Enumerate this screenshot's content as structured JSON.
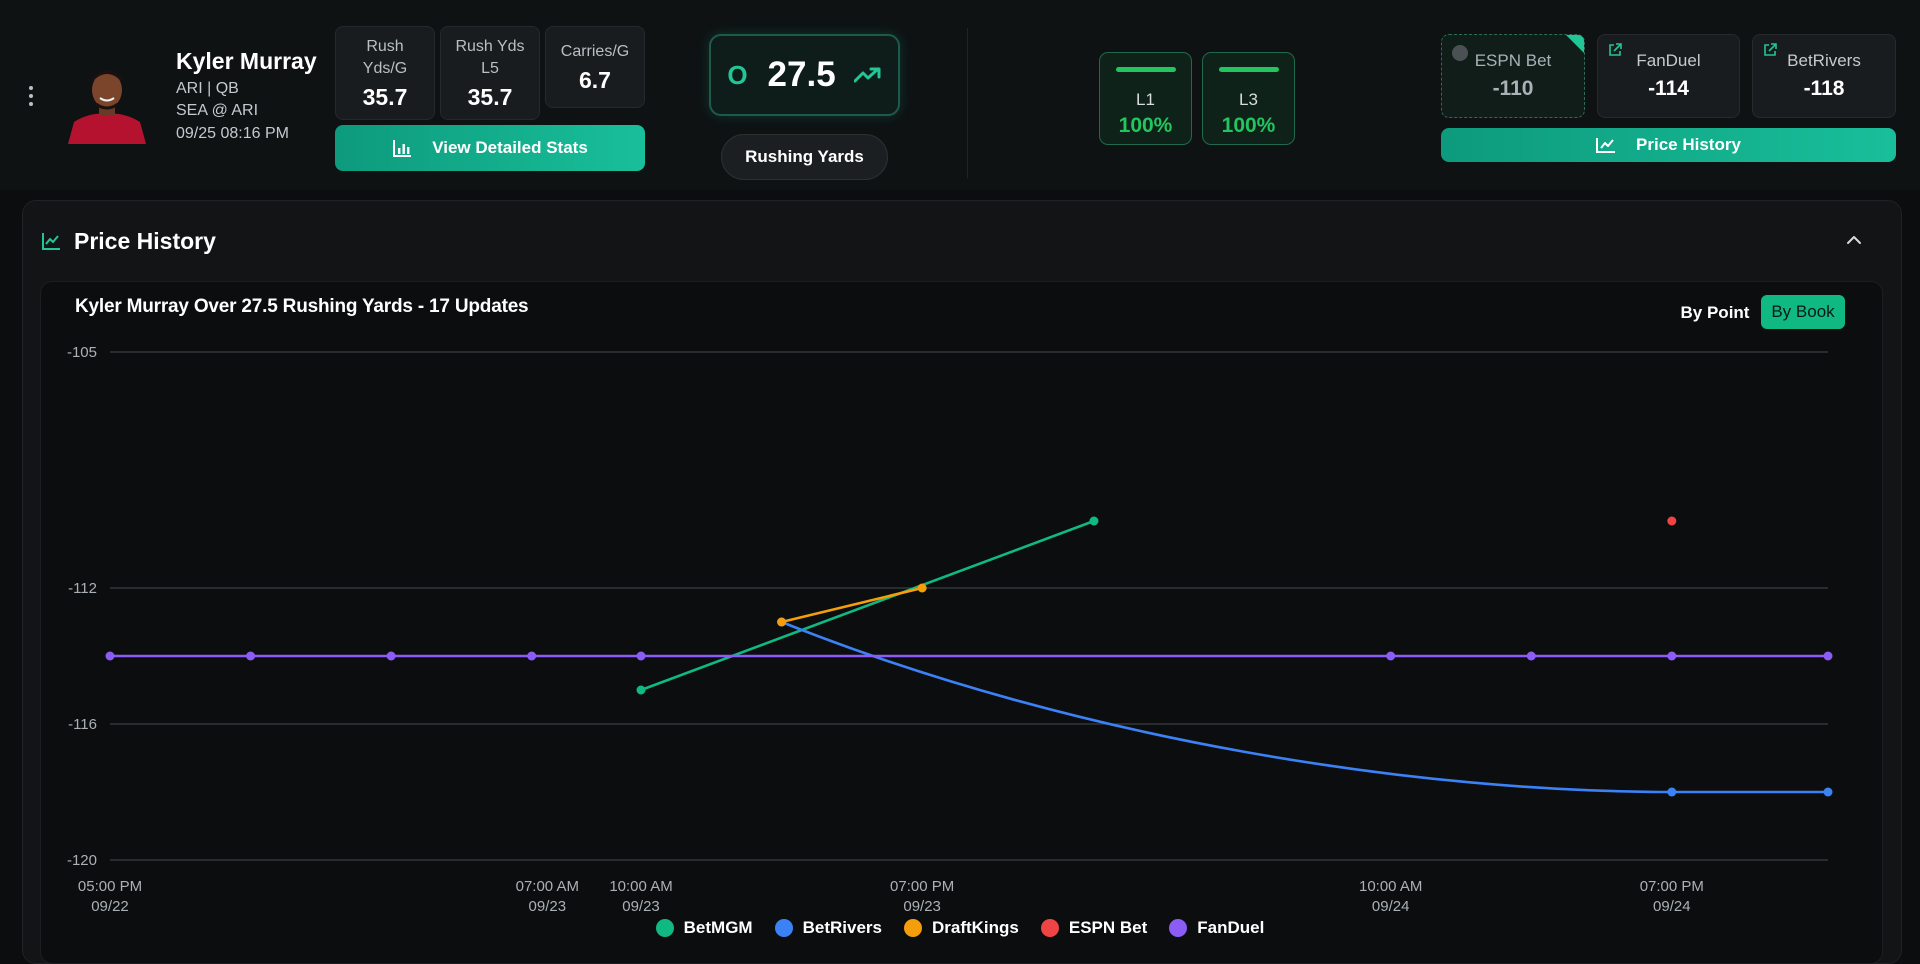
{
  "player": {
    "name": "Kyler Murray",
    "team_pos": "ARI | QB",
    "matchup": "SEA @ ARI",
    "datetime": "09/25 08:16 PM"
  },
  "stats": [
    {
      "label_line1": "Rush",
      "label_line2": "Yds/G",
      "value": "35.7"
    },
    {
      "label_line1": "Rush Yds",
      "label_line2": "L5",
      "value": "35.7"
    },
    {
      "label_line1": "Carries/G",
      "label_line2": "",
      "value": "6.7"
    }
  ],
  "view_stats_label": "View Detailed Stats",
  "line": {
    "side": "O",
    "value": "27.5",
    "market": "Rushing Yards"
  },
  "hit_rates": [
    {
      "label": "L1",
      "value": "100%"
    },
    {
      "label": "L3",
      "value": "100%"
    }
  ],
  "books": [
    {
      "name": "ESPN Bet",
      "odds": "-110"
    },
    {
      "name": "FanDuel",
      "odds": "-114"
    },
    {
      "name": "BetRivers",
      "odds": "-118"
    }
  ],
  "price_history_button": "Price History",
  "panel": {
    "title": "Price History"
  },
  "chart_toggle": {
    "by_point": "By Point",
    "by_book": "By Book"
  },
  "colors": {
    "accent": "#10b981",
    "BetMGM": "#10b981",
    "BetRivers": "#3b82f6",
    "DraftKings": "#f59e0b",
    "ESPN Bet": "#ef4444",
    "FanDuel": "#8b5cf6"
  },
  "chart_data": {
    "type": "line",
    "title": "Kyler Murray Over 27.5 Rushing Yards - 17 Updates",
    "xlabel": "",
    "ylabel": "",
    "ylim": [
      -120,
      -105
    ],
    "yticks": [
      -105,
      -112,
      -116,
      -120
    ],
    "xticks": [
      {
        "t": 0,
        "time": "05:00 PM",
        "date": "09/22"
      },
      {
        "t": 14,
        "time": "07:00 AM",
        "date": "09/23"
      },
      {
        "t": 17,
        "time": "10:00 AM",
        "date": "09/23"
      },
      {
        "t": 26,
        "time": "07:00 PM",
        "date": "09/23"
      },
      {
        "t": 41,
        "time": "10:00 AM",
        "date": "09/24"
      },
      {
        "t": 50,
        "time": "07:00 PM",
        "date": "09/24"
      }
    ],
    "xlim": [
      0,
      55
    ],
    "legend_position": "bottom",
    "grid": true,
    "series": [
      {
        "name": "BetMGM",
        "points": [
          [
            17,
            -115
          ],
          [
            31.5,
            -110
          ]
        ]
      },
      {
        "name": "BetRivers",
        "points": [
          [
            21.5,
            -113
          ],
          [
            50,
            -118
          ],
          [
            55,
            -118
          ]
        ]
      },
      {
        "name": "DraftKings",
        "points": [
          [
            21.5,
            -113
          ],
          [
            26,
            -112
          ]
        ]
      },
      {
        "name": "ESPN Bet",
        "points": [
          [
            50,
            -110
          ]
        ]
      },
      {
        "name": "FanDuel",
        "points": [
          [
            0,
            -114
          ],
          [
            4.5,
            -114
          ],
          [
            9,
            -114
          ],
          [
            13.5,
            -114
          ],
          [
            17,
            -114
          ],
          [
            41,
            -114
          ],
          [
            45.5,
            -114
          ],
          [
            50,
            -114
          ],
          [
            55,
            -114
          ]
        ]
      }
    ]
  }
}
